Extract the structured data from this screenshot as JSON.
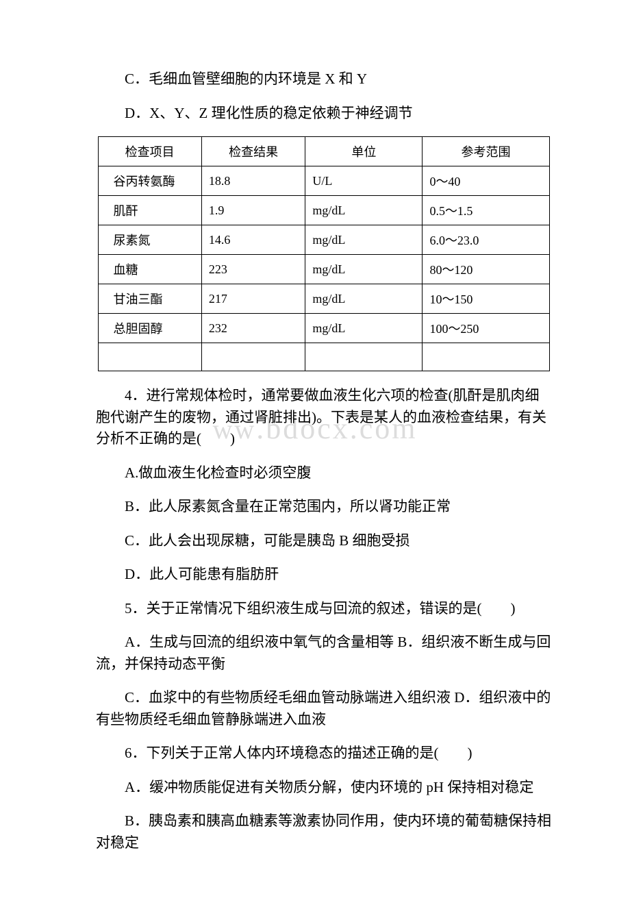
{
  "watermark_cn": "ww",
  "watermark_en": ".bdocx.com",
  "options_top": [
    "C．毛细血管壁细胞的内环境是 X 和 Y",
    "D．X、Y、Z 理化性质的稳定依赖于神经调节"
  ],
  "table": {
    "headers": [
      "检查项目",
      "检查结果",
      "单位",
      "参考范围"
    ],
    "rows": [
      [
        "谷丙转氨酶",
        "18.8",
        "U/L",
        "0～40"
      ],
      [
        "肌酐",
        "1.9",
        "mg/dL",
        "0.5～1.5"
      ],
      [
        "尿素氮",
        "14.6",
        "mg/dL",
        "6.0～23.0"
      ],
      [
        "血糖",
        "223",
        "mg/dL",
        "80～120"
      ],
      [
        "甘油三酯",
        "217",
        "mg/dL",
        "10～150"
      ],
      [
        "总胆固醇",
        "232",
        "mg/dL",
        "100～250"
      ],
      [
        "",
        "",
        "",
        ""
      ]
    ],
    "col_align": [
      "left",
      "left",
      "center",
      "center"
    ]
  },
  "q4": {
    "stem": "4．进行常规体检时，通常要做血液生化六项的检查(肌酐是肌肉细胞代谢产生的废物，通过肾脏排出)。下表是某人的血液检查结果，有关分析不正确的是(　　)",
    "opts": [
      "A.做血液生化检查时必须空腹",
      "B．此人尿素氮含量在正常范围内，所以肾功能正常",
      "C．此人会出现尿糖，可能是胰岛 B 细胞受损",
      "D．此人可能患有脂肪肝"
    ]
  },
  "q5": {
    "stem": "5．关于正常情况下组织液生成与回流的叙述，错误的是(　　)",
    "opts": [
      "A．生成与回流的组织液中氧气的含量相等 B．组织液不断生成与回流，并保持动态平衡",
      "C．血浆中的有些物质经毛细血管动脉端进入组织液 D．组织液中的有些物质经毛细血管静脉端进入血液"
    ]
  },
  "q6": {
    "stem": "6．下列关于正常人体内环境稳态的描述正确的是(　　)",
    "opts": [
      "A．缓冲物质能促进有关物质分解，使内环境的 pH 保持相对稳定",
      "B．胰岛素和胰高血糖素等激素协同作用，使内环境的葡萄糖保持相对稳定"
    ]
  }
}
